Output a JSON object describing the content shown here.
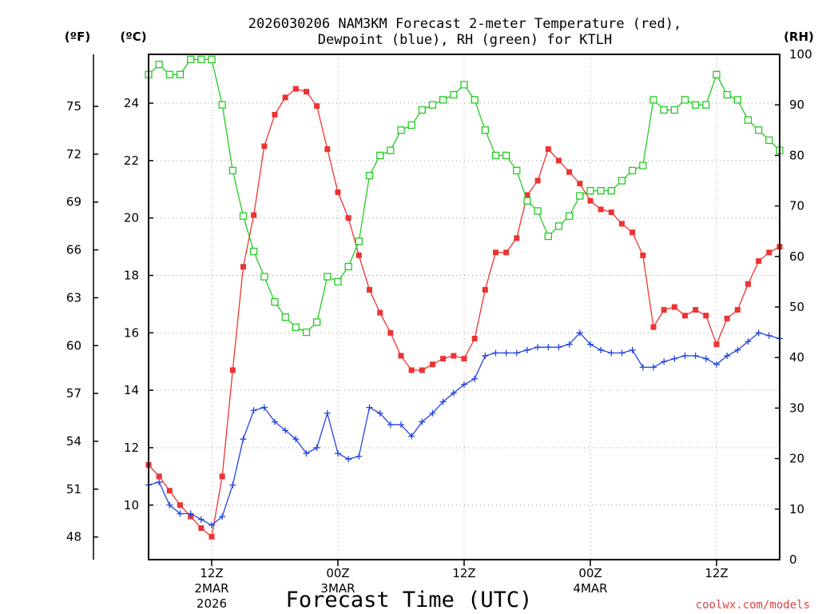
{
  "chart_data": {
    "type": "line",
    "title": "2026030206 NAM3KM Forecast 2-meter Temperature (red),",
    "subtitle": "Dewpoint (blue), RH (green) for KTLH",
    "xlabel": "Forecast Time (UTC)",
    "units": {
      "fahrenheit": "(ºF)",
      "celsius": "(ºC)",
      "rh": "(RH)"
    },
    "watermark": "coolwx.com/models",
    "x_range_hours": [
      6,
      66
    ],
    "celsius_axis": {
      "range": [
        8.1,
        25.7
      ],
      "ticks": [
        "10",
        "12",
        "14",
        "16",
        "18",
        "20",
        "22",
        "24"
      ]
    },
    "fahrenheit_ticks": [
      "48",
      "51",
      "54",
      "57",
      "60",
      "63",
      "66",
      "69",
      "72",
      "75"
    ],
    "rh_axis": {
      "range": [
        0,
        100
      ],
      "ticks": [
        "0",
        "10",
        "20",
        "30",
        "40",
        "50",
        "60",
        "70",
        "80",
        "90",
        "100"
      ]
    },
    "x_ticks": [
      {
        "hour": 12,
        "label": "12Z",
        "date": "2MAR",
        "year": "2026"
      },
      {
        "hour": 24,
        "label": "00Z",
        "date": "3MAR",
        "year": ""
      },
      {
        "hour": 36,
        "label": "12Z",
        "date": "",
        "year": ""
      },
      {
        "hour": 48,
        "label": "00Z",
        "date": "4MAR",
        "year": ""
      },
      {
        "hour": 60,
        "label": "12Z",
        "date": "",
        "year": ""
      }
    ],
    "series": [
      {
        "name": "Temperature",
        "color": "#ee3333",
        "axis": "celsius",
        "marker": "filled-square",
        "values": [
          [
            6,
            11.4
          ],
          [
            7,
            11.0
          ],
          [
            8,
            10.5
          ],
          [
            9,
            10.0
          ],
          [
            10,
            9.6
          ],
          [
            11,
            9.2
          ],
          [
            12,
            8.9
          ],
          [
            13,
            11.0
          ],
          [
            14,
            14.7
          ],
          [
            15,
            18.3
          ],
          [
            16,
            20.1
          ],
          [
            17,
            22.5
          ],
          [
            18,
            23.6
          ],
          [
            19,
            24.2
          ],
          [
            20,
            24.5
          ],
          [
            21,
            24.4
          ],
          [
            22,
            23.9
          ],
          [
            23,
            22.4
          ],
          [
            24,
            20.9
          ],
          [
            25,
            20.0
          ],
          [
            26,
            18.7
          ],
          [
            27,
            17.5
          ],
          [
            28,
            16.7
          ],
          [
            29,
            16.0
          ],
          [
            30,
            15.2
          ],
          [
            31,
            14.7
          ],
          [
            32,
            14.7
          ],
          [
            33,
            14.9
          ],
          [
            34,
            15.1
          ],
          [
            35,
            15.2
          ],
          [
            36,
            15.1
          ],
          [
            37,
            15.8
          ],
          [
            38,
            17.5
          ],
          [
            39,
            18.8
          ],
          [
            40,
            18.8
          ],
          [
            41,
            19.3
          ],
          [
            42,
            20.8
          ],
          [
            43,
            21.3
          ],
          [
            44,
            22.4
          ],
          [
            45,
            22.0
          ],
          [
            46,
            21.6
          ],
          [
            47,
            21.2
          ],
          [
            48,
            20.6
          ],
          [
            49,
            20.3
          ],
          [
            50,
            20.2
          ],
          [
            51,
            19.8
          ],
          [
            52,
            19.5
          ],
          [
            53,
            18.7
          ],
          [
            54,
            16.2
          ],
          [
            55,
            16.8
          ],
          [
            56,
            16.9
          ],
          [
            57,
            16.6
          ],
          [
            58,
            16.8
          ],
          [
            59,
            16.6
          ],
          [
            60,
            15.6
          ],
          [
            61,
            16.5
          ],
          [
            62,
            16.8
          ],
          [
            63,
            17.7
          ],
          [
            64,
            18.5
          ],
          [
            65,
            18.8
          ],
          [
            66,
            19.0
          ]
        ]
      },
      {
        "name": "Dewpoint",
        "color": "#2244dd",
        "axis": "celsius",
        "marker": "plus",
        "values": [
          [
            6,
            10.7
          ],
          [
            7,
            10.8
          ],
          [
            8,
            10.0
          ],
          [
            9,
            9.7
          ],
          [
            10,
            9.7
          ],
          [
            11,
            9.5
          ],
          [
            12,
            9.3
          ],
          [
            13,
            9.6
          ],
          [
            14,
            10.7
          ],
          [
            15,
            12.3
          ],
          [
            16,
            13.3
          ],
          [
            17,
            13.4
          ],
          [
            18,
            12.9
          ],
          [
            19,
            12.6
          ],
          [
            20,
            12.3
          ],
          [
            21,
            11.8
          ],
          [
            22,
            12.0
          ],
          [
            23,
            13.2
          ],
          [
            24,
            11.8
          ],
          [
            25,
            11.6
          ],
          [
            26,
            11.7
          ],
          [
            27,
            13.4
          ],
          [
            28,
            13.2
          ],
          [
            29,
            12.8
          ],
          [
            30,
            12.8
          ],
          [
            31,
            12.4
          ],
          [
            32,
            12.9
          ],
          [
            33,
            13.2
          ],
          [
            34,
            13.6
          ],
          [
            35,
            13.9
          ],
          [
            36,
            14.2
          ],
          [
            37,
            14.4
          ],
          [
            38,
            15.2
          ],
          [
            39,
            15.3
          ],
          [
            40,
            15.3
          ],
          [
            41,
            15.3
          ],
          [
            42,
            15.4
          ],
          [
            43,
            15.5
          ],
          [
            44,
            15.5
          ],
          [
            45,
            15.5
          ],
          [
            46,
            15.6
          ],
          [
            47,
            16.0
          ],
          [
            48,
            15.6
          ],
          [
            49,
            15.4
          ],
          [
            50,
            15.3
          ],
          [
            51,
            15.3
          ],
          [
            52,
            15.4
          ],
          [
            53,
            14.8
          ],
          [
            54,
            14.8
          ],
          [
            55,
            15.0
          ],
          [
            56,
            15.1
          ],
          [
            57,
            15.2
          ],
          [
            58,
            15.2
          ],
          [
            59,
            15.1
          ],
          [
            60,
            14.9
          ],
          [
            61,
            15.2
          ],
          [
            62,
            15.4
          ],
          [
            63,
            15.7
          ],
          [
            64,
            16.0
          ],
          [
            65,
            15.9
          ],
          [
            66,
            15.8
          ]
        ]
      },
      {
        "name": "RH",
        "color": "#22cc22",
        "axis": "rh",
        "marker": "open-square",
        "values": [
          [
            6,
            96
          ],
          [
            7,
            98
          ],
          [
            8,
            96
          ],
          [
            9,
            96
          ],
          [
            10,
            99
          ],
          [
            11,
            99
          ],
          [
            12,
            99
          ],
          [
            13,
            90
          ],
          [
            14,
            77
          ],
          [
            15,
            68
          ],
          [
            16,
            61
          ],
          [
            17,
            56
          ],
          [
            18,
            51
          ],
          [
            19,
            48
          ],
          [
            20,
            46
          ],
          [
            21,
            45
          ],
          [
            22,
            47
          ],
          [
            23,
            56
          ],
          [
            24,
            55
          ],
          [
            25,
            58
          ],
          [
            26,
            63
          ],
          [
            27,
            76
          ],
          [
            28,
            80
          ],
          [
            29,
            81
          ],
          [
            30,
            85
          ],
          [
            31,
            86
          ],
          [
            32,
            89
          ],
          [
            33,
            90
          ],
          [
            34,
            91
          ],
          [
            35,
            92
          ],
          [
            36,
            94
          ],
          [
            37,
            91
          ],
          [
            38,
            85
          ],
          [
            39,
            80
          ],
          [
            40,
            80
          ],
          [
            41,
            77
          ],
          [
            42,
            71
          ],
          [
            43,
            69
          ],
          [
            44,
            64
          ],
          [
            45,
            66
          ],
          [
            46,
            68
          ],
          [
            47,
            72
          ],
          [
            48,
            73
          ],
          [
            49,
            73
          ],
          [
            50,
            73
          ],
          [
            51,
            75
          ],
          [
            52,
            77
          ],
          [
            53,
            78
          ],
          [
            54,
            91
          ],
          [
            55,
            89
          ],
          [
            56,
            89
          ],
          [
            57,
            91
          ],
          [
            58,
            90
          ],
          [
            59,
            90
          ],
          [
            60,
            96
          ],
          [
            61,
            92
          ],
          [
            62,
            91
          ],
          [
            63,
            87
          ],
          [
            64,
            85
          ],
          [
            65,
            83
          ],
          [
            66,
            81
          ]
        ]
      }
    ]
  }
}
